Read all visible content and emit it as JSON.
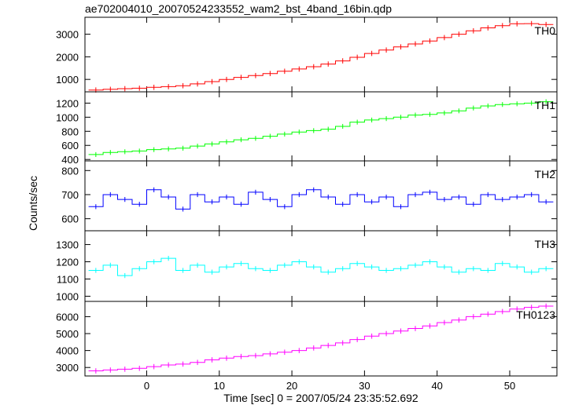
{
  "chart_data": {
    "type": "line",
    "title": "ae702004010_20070524233552_wam2_bst_4band_16bin.qdp",
    "xlabel": "Time [sec] 0 = 2007/05/24 23:35:52.692",
    "ylabel": "Counts/sec",
    "xlim": [
      -8.5,
      56.5
    ],
    "xticks": [
      0,
      10,
      20,
      30,
      40,
      50
    ],
    "grid": false,
    "panels": [
      {
        "name": "TH0",
        "color": "#ff0000",
        "ylim": [
          450,
          3750
        ],
        "yticks": [
          1000,
          2000,
          3000
        ],
        "time": [
          -7,
          -5,
          -3,
          -1,
          1,
          3,
          5,
          7,
          9,
          11,
          13,
          15,
          17,
          19,
          21,
          23,
          25,
          27,
          29,
          31,
          33,
          35,
          37,
          39,
          41,
          43,
          45,
          47,
          49,
          51,
          53,
          55
        ],
        "values": [
          530,
          560,
          590,
          610,
          650,
          680,
          720,
          800,
          900,
          1000,
          1090,
          1170,
          1260,
          1360,
          1460,
          1560,
          1680,
          1820,
          1980,
          2150,
          2300,
          2440,
          2570,
          2700,
          2850,
          3000,
          3150,
          3280,
          3380,
          3460,
          3470,
          3430
        ]
      },
      {
        "name": "TH1",
        "color": "#00ff00",
        "ylim": [
          380,
          1360
        ],
        "yticks": [
          400,
          600,
          800,
          1000,
          1200
        ],
        "time": [
          -7,
          -5,
          -3,
          -1,
          1,
          3,
          5,
          7,
          9,
          11,
          13,
          15,
          17,
          19,
          21,
          23,
          25,
          27,
          29,
          31,
          33,
          35,
          37,
          39,
          41,
          43,
          45,
          47,
          49,
          51,
          53,
          55
        ],
        "values": [
          470,
          500,
          510,
          520,
          540,
          550,
          560,
          590,
          620,
          650,
          680,
          700,
          730,
          760,
          790,
          810,
          830,
          870,
          930,
          960,
          980,
          1000,
          1030,
          1040,
          1060,
          1090,
          1130,
          1160,
          1180,
          1190,
          1200,
          1220
        ]
      },
      {
        "name": "TH2",
        "color": "#0000ff",
        "ylim": [
          550,
          840
        ],
        "yticks": [
          600,
          700,
          800
        ],
        "time": [
          -7,
          -5,
          -3,
          -1,
          1,
          3,
          5,
          7,
          9,
          11,
          13,
          15,
          17,
          19,
          21,
          23,
          25,
          27,
          29,
          31,
          33,
          35,
          37,
          39,
          41,
          43,
          45,
          47,
          49,
          51,
          53,
          55
        ],
        "values": [
          650,
          700,
          680,
          660,
          720,
          690,
          640,
          700,
          670,
          690,
          660,
          710,
          680,
          650,
          700,
          720,
          690,
          660,
          700,
          670,
          690,
          650,
          700,
          710,
          680,
          690,
          660,
          700,
          680,
          690,
          700,
          670
        ]
      },
      {
        "name": "TH3",
        "color": "#00ffff",
        "ylim": [
          970,
          1380
        ],
        "yticks": [
          1000,
          1100,
          1200,
          1300
        ],
        "time": [
          -7,
          -5,
          -3,
          -1,
          1,
          3,
          5,
          7,
          9,
          11,
          13,
          15,
          17,
          19,
          21,
          23,
          25,
          27,
          29,
          31,
          33,
          35,
          37,
          39,
          41,
          43,
          45,
          47,
          49,
          51,
          53,
          55
        ],
        "values": [
          1150,
          1180,
          1120,
          1160,
          1200,
          1220,
          1150,
          1180,
          1140,
          1170,
          1190,
          1160,
          1150,
          1180,
          1200,
          1170,
          1140,
          1160,
          1190,
          1170,
          1150,
          1160,
          1180,
          1200,
          1170,
          1140,
          1160,
          1150,
          1190,
          1170,
          1140,
          1160
        ]
      },
      {
        "name": "TH0123",
        "color": "#ff00ff",
        "ylim": [
          2500,
          6900
        ],
        "yticks": [
          3000,
          4000,
          5000,
          6000
        ],
        "time": [
          -7,
          -5,
          -3,
          -1,
          1,
          3,
          5,
          7,
          9,
          11,
          13,
          15,
          17,
          19,
          21,
          23,
          25,
          27,
          29,
          31,
          33,
          35,
          37,
          39,
          41,
          43,
          45,
          47,
          49,
          51,
          53,
          55
        ],
        "values": [
          2800,
          2850,
          2900,
          2950,
          3050,
          3150,
          3200,
          3300,
          3450,
          3550,
          3650,
          3700,
          3800,
          3900,
          4000,
          4150,
          4300,
          4450,
          4650,
          4850,
          5000,
          5150,
          5300,
          5450,
          5650,
          5800,
          6000,
          6150,
          6300,
          6450,
          6550,
          6620
        ]
      }
    ]
  }
}
